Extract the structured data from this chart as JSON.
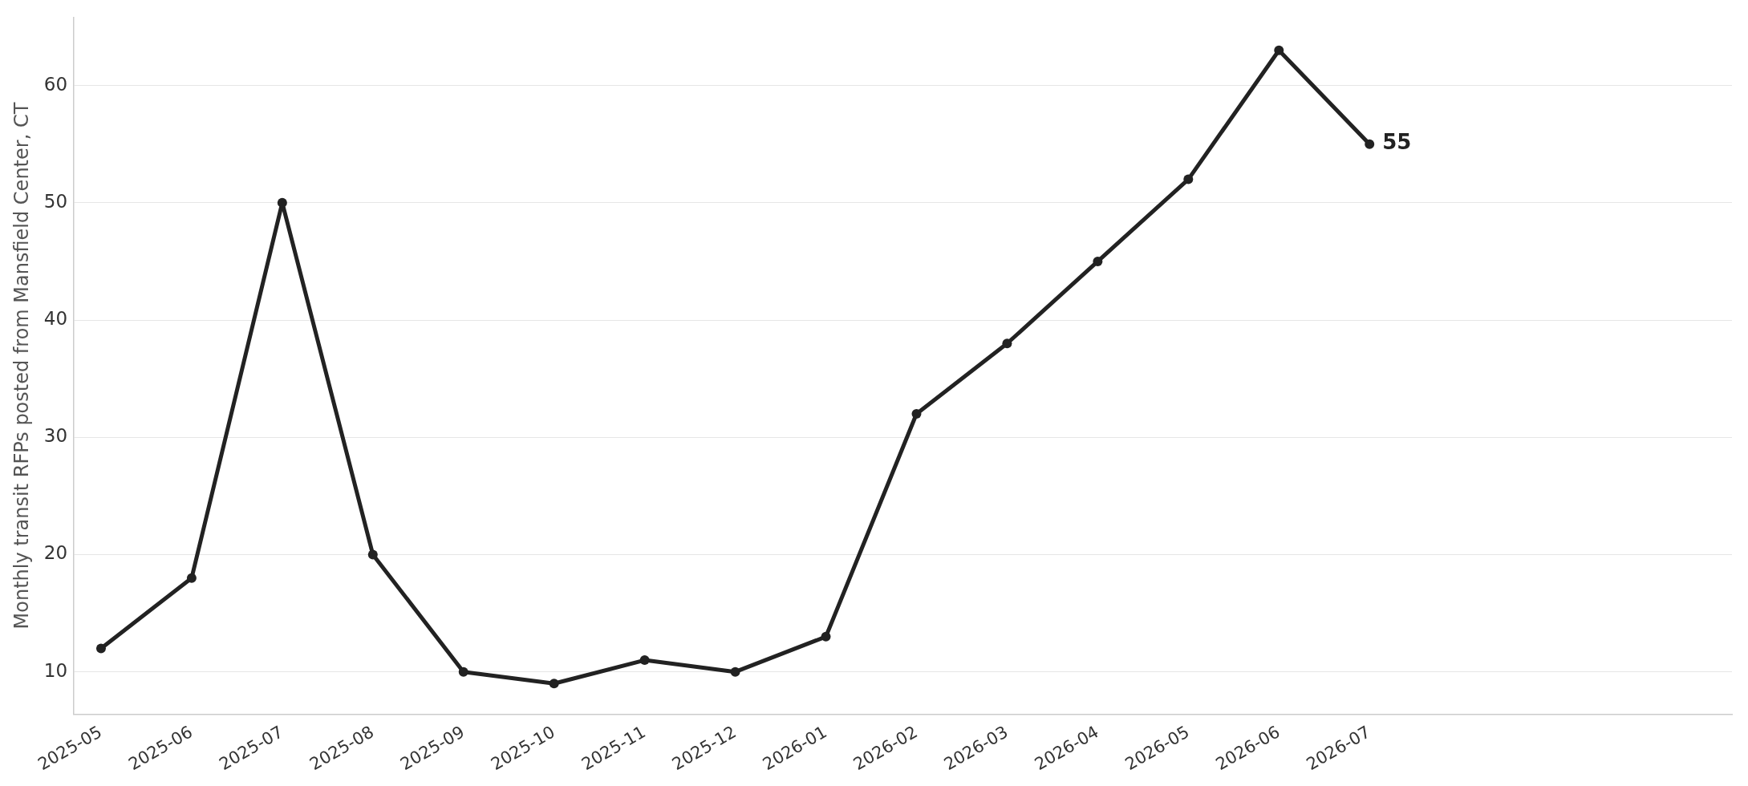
{
  "chart_data": {
    "type": "line",
    "ylabel": "Monthly transit RFPs posted from Mansfield Center, CT",
    "x": [
      "2025-05",
      "2025-06",
      "2025-07",
      "2025-08",
      "2025-09",
      "2025-10",
      "2025-11",
      "2025-12",
      "2026-01",
      "2026-02",
      "2026-03",
      "2026-04",
      "2026-05",
      "2026-06",
      "2026-07"
    ],
    "series": [
      {
        "color": "#222222",
        "values": [
          12,
          18,
          50,
          20,
          10,
          9,
          11,
          10,
          13,
          32,
          38,
          45,
          52,
          63,
          55
        ],
        "value_labels": [
          null,
          null,
          null,
          null,
          null,
          null,
          null,
          null,
          null,
          null,
          null,
          null,
          null,
          null,
          "55"
        ]
      }
    ],
    "xlim": [
      "2025-04-22",
      "2026-11-01"
    ],
    "xticks": [
      "2025-05",
      "2025-06",
      "2025-07",
      "2025-08",
      "2025-09",
      "2025-10",
      "2025-11",
      "2025-12",
      "2026-01",
      "2026-02",
      "2026-03",
      "2026-04",
      "2026-05",
      "2026-06",
      "2026-07"
    ],
    "ylim": [
      6.4,
      65.8
    ],
    "yticks": [
      10,
      20,
      30,
      40,
      50,
      60
    ],
    "grid": "y",
    "legend": false,
    "marker": "circle",
    "line_style": "solid"
  }
}
